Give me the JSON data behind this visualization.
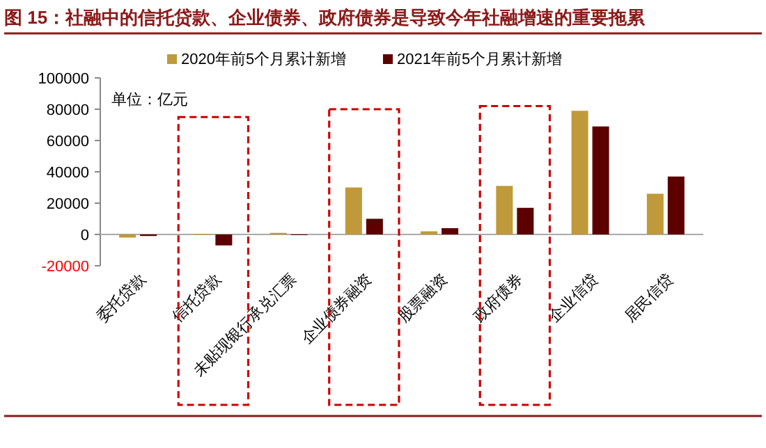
{
  "chart_data": {
    "type": "bar",
    "title": "图 15：社融中的信托贷款、企业债券、政府债券是导致今年社融增速的重要拖累",
    "categories": [
      "委托贷款",
      "信托贷款",
      "未贴现银行承兑汇票",
      "企业债券融资",
      "股票融资",
      "政府债券",
      "企业信贷",
      "居民信贷"
    ],
    "series": [
      {
        "name": "2020年前5个月累计新增",
        "color": "#c09a3a",
        "values": [
          -2000,
          0,
          1000,
          30000,
          2000,
          31000,
          79000,
          26000
        ]
      },
      {
        "name": "2021年前5个月累计新增",
        "color": "#5c0000",
        "values": [
          -1000,
          -7000,
          0,
          10000,
          4000,
          17000,
          69000,
          37000
        ]
      }
    ],
    "ylim": [
      -20000,
      100000
    ],
    "yticks": [
      {
        "value": -20000,
        "label": "-20000"
      },
      0,
      20000,
      40000,
      60000,
      80000,
      100000
    ],
    "annotations": [
      "单位：亿元"
    ],
    "legend": "top",
    "grid": false
  }
}
